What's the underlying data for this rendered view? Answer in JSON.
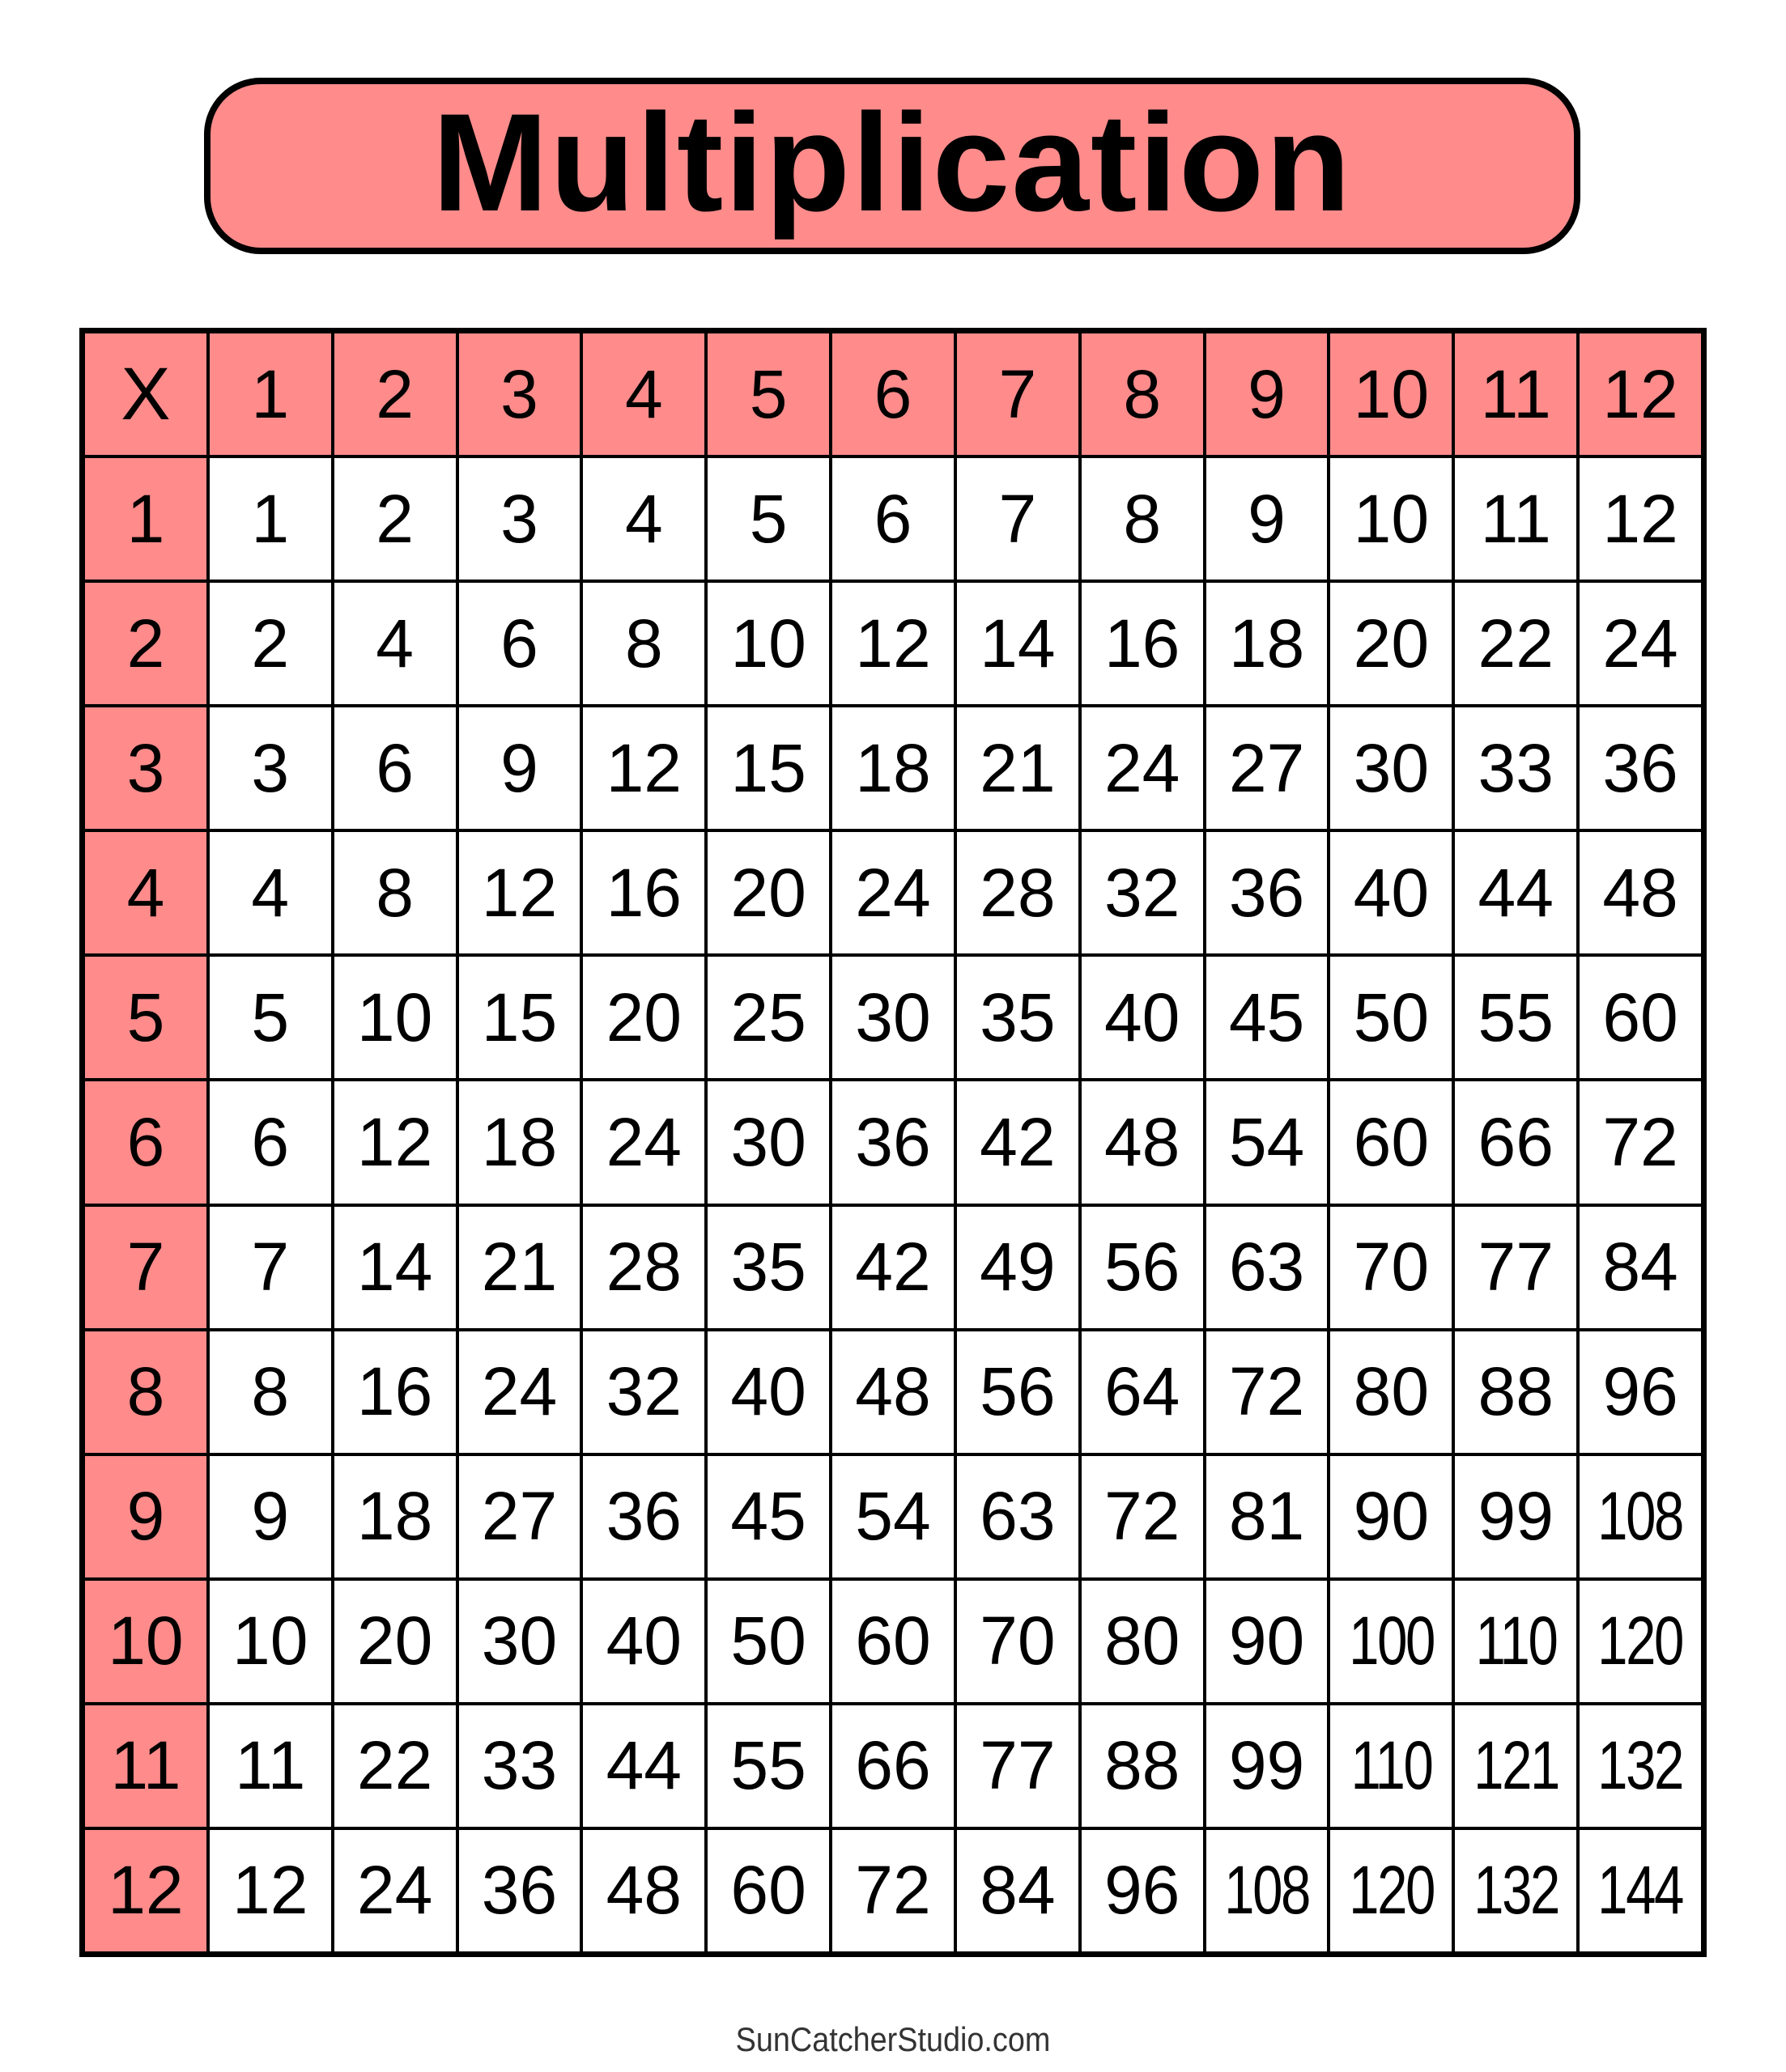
{
  "title": "Multiplication",
  "colors": {
    "header_fill": "#FF8B8B",
    "border": "#000000",
    "cell_fill": "#FFFFFF"
  },
  "table": {
    "corner": "X",
    "column_headers": [
      "1",
      "2",
      "3",
      "4",
      "5",
      "6",
      "7",
      "8",
      "9",
      "10",
      "11",
      "12"
    ],
    "row_headers": [
      "1",
      "2",
      "3",
      "4",
      "5",
      "6",
      "7",
      "8",
      "9",
      "10",
      "11",
      "12"
    ],
    "rows": [
      [
        "1",
        "2",
        "3",
        "4",
        "5",
        "6",
        "7",
        "8",
        "9",
        "10",
        "11",
        "12"
      ],
      [
        "2",
        "4",
        "6",
        "8",
        "10",
        "12",
        "14",
        "16",
        "18",
        "20",
        "22",
        "24"
      ],
      [
        "3",
        "6",
        "9",
        "12",
        "15",
        "18",
        "21",
        "24",
        "27",
        "30",
        "33",
        "36"
      ],
      [
        "4",
        "8",
        "12",
        "16",
        "20",
        "24",
        "28",
        "32",
        "36",
        "40",
        "44",
        "48"
      ],
      [
        "5",
        "10",
        "15",
        "20",
        "25",
        "30",
        "35",
        "40",
        "45",
        "50",
        "55",
        "60"
      ],
      [
        "6",
        "12",
        "18",
        "24",
        "30",
        "36",
        "42",
        "48",
        "54",
        "60",
        "66",
        "72"
      ],
      [
        "7",
        "14",
        "21",
        "28",
        "35",
        "42",
        "49",
        "56",
        "63",
        "70",
        "77",
        "84"
      ],
      [
        "8",
        "16",
        "24",
        "32",
        "40",
        "48",
        "56",
        "64",
        "72",
        "80",
        "88",
        "96"
      ],
      [
        "9",
        "18",
        "27",
        "36",
        "45",
        "54",
        "63",
        "72",
        "81",
        "90",
        "99",
        "108"
      ],
      [
        "10",
        "20",
        "30",
        "40",
        "50",
        "60",
        "70",
        "80",
        "90",
        "100",
        "110",
        "120"
      ],
      [
        "11",
        "22",
        "33",
        "44",
        "55",
        "66",
        "77",
        "88",
        "99",
        "110",
        "121",
        "132"
      ],
      [
        "12",
        "24",
        "36",
        "48",
        "60",
        "72",
        "84",
        "96",
        "108",
        "120",
        "132",
        "144"
      ]
    ]
  },
  "footer": "SunCatcherStudio.com"
}
